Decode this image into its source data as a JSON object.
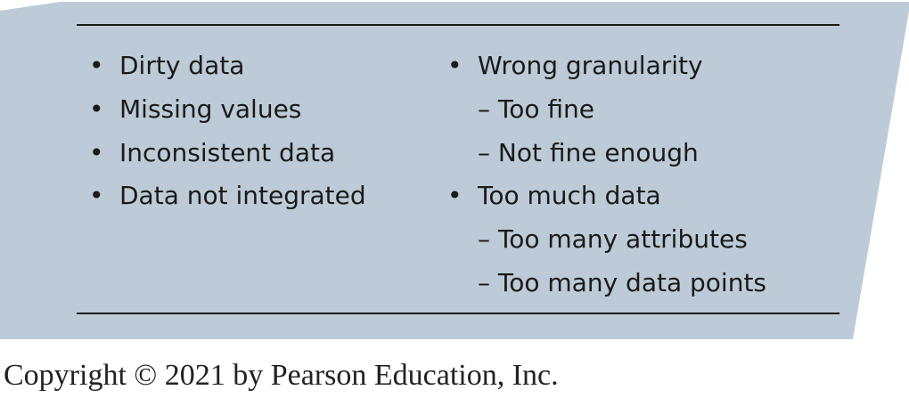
{
  "panel": {
    "fill_color": "#bccbd7",
    "left_column": [
      {
        "text": "Dirty data"
      },
      {
        "text": "Missing values"
      },
      {
        "text": "Inconsistent data"
      },
      {
        "text": "Data not integrated"
      }
    ],
    "right_column": [
      {
        "text": "Wrong granularity",
        "kind": "bullet"
      },
      {
        "text": "– Too fine",
        "kind": "sub"
      },
      {
        "text": "– Not fine enough",
        "kind": "sub"
      },
      {
        "text": "Too much data",
        "kind": "bullet"
      },
      {
        "text": "– Too many attributes",
        "kind": "sub"
      },
      {
        "text": "– Too many data points",
        "kind": "sub"
      }
    ],
    "bullet_glyph": "•"
  },
  "footer": {
    "copyright": "Copyright © 2021 by Pearson Education, Inc."
  }
}
